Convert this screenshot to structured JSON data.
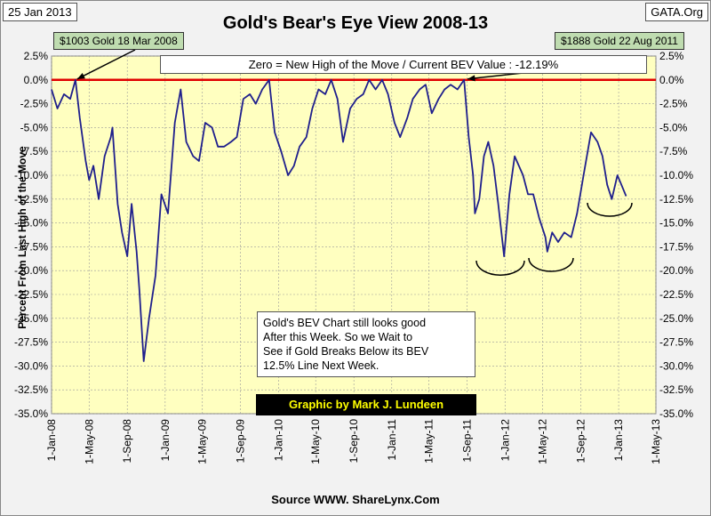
{
  "date_label": "25 Jan 2013",
  "site_label": "GATA.Org",
  "callout_left": "$1003  Gold 18 Mar 2008",
  "callout_right": "$1888  Gold 22 Aug 2011",
  "note_lines": [
    "Gold's BEV Chart still looks good",
    "After this Week.  So we Wait to",
    "See if Gold Breaks Below its BEV",
    "12.5% Line Next Week."
  ],
  "credit": "Graphic by Mark J. Lundeen",
  "source": "Source WWW. ShareLynx.Com",
  "colors": {
    "plot_bg": "#ffffc0",
    "series": "#1f1f8c",
    "zero_line": "#e00000",
    "callout_bg": "#bfdcb0",
    "credit_bg": "#000000",
    "credit_text": "#ffff00"
  },
  "chart_data": {
    "type": "line",
    "title": "Gold's Bear's Eye View 2008-13",
    "subtitle": "Zero = New High of the Move / Current  BEV Value : -12.19%",
    "xlabel": "",
    "ylabel": "Percent From Last High of the Move",
    "ylim": [
      -35,
      2.5
    ],
    "xlim": [
      "2008-01-01",
      "2013-05-01"
    ],
    "grid": true,
    "y_ticks": [
      "2.5%",
      "0.0%",
      "-2.5%",
      "-5.0%",
      "-7.5%",
      "-10.0%",
      "-12.5%",
      "-15.0%",
      "-17.5%",
      "-20.0%",
      "-22.5%",
      "-25.0%",
      "-27.5%",
      "-30.0%",
      "-32.5%",
      "-35.0%"
    ],
    "x_ticks": [
      "1-Jan-08",
      "1-May-08",
      "1-Sep-08",
      "1-Jan-09",
      "1-May-09",
      "1-Sep-09",
      "1-Jan-10",
      "1-May-10",
      "1-Sep-10",
      "1-Jan-11",
      "1-May-11",
      "1-Sep-11",
      "1-Jan-12",
      "1-May-12",
      "1-Sep-12",
      "1-Jan-13",
      "1-May-13"
    ],
    "series": [
      {
        "x": [
          "2008-01-01",
          "2008-01-20",
          "2008-02-10",
          "2008-03-01",
          "2008-03-18",
          "2008-04-01",
          "2008-04-20",
          "2008-05-01",
          "2008-05-15",
          "2008-06-01",
          "2008-06-20",
          "2008-07-10",
          "2008-07-15",
          "2008-08-01",
          "2008-08-15",
          "2008-09-01",
          "2008-09-15",
          "2008-10-01",
          "2008-10-10",
          "2008-10-24",
          "2008-11-10",
          "2008-12-01",
          "2008-12-20",
          "2009-01-10",
          "2009-02-01",
          "2009-02-20",
          "2009-03-10",
          "2009-04-01",
          "2009-04-20",
          "2009-05-10",
          "2009-06-01",
          "2009-06-20",
          "2009-07-10",
          "2009-08-01",
          "2009-08-20",
          "2009-09-10",
          "2009-10-01",
          "2009-10-20",
          "2009-11-10",
          "2009-12-02",
          "2009-12-20",
          "2010-01-10",
          "2010-02-01",
          "2010-02-20",
          "2010-03-10",
          "2010-04-01",
          "2010-04-20",
          "2010-05-10",
          "2010-06-01",
          "2010-06-20",
          "2010-07-10",
          "2010-07-28",
          "2010-08-20",
          "2010-09-10",
          "2010-10-01",
          "2010-10-20",
          "2010-11-10",
          "2010-12-01",
          "2010-12-20",
          "2011-01-10",
          "2011-01-28",
          "2011-02-20",
          "2011-03-10",
          "2011-04-01",
          "2011-04-20",
          "2011-05-10",
          "2011-06-01",
          "2011-06-20",
          "2011-07-10",
          "2011-08-01",
          "2011-08-22",
          "2011-09-06",
          "2011-09-20",
          "2011-09-26",
          "2011-10-10",
          "2011-10-25",
          "2011-11-08",
          "2011-11-25",
          "2011-12-10",
          "2011-12-29",
          "2012-01-15",
          "2012-02-01",
          "2012-02-28",
          "2012-03-15",
          "2012-04-01",
          "2012-04-20",
          "2012-05-10",
          "2012-05-16",
          "2012-06-01",
          "2012-06-20",
          "2012-07-10",
          "2012-08-01",
          "2012-08-20",
          "2012-09-10",
          "2012-10-04",
          "2012-10-25",
          "2012-11-10",
          "2012-11-25",
          "2012-12-10",
          "2012-12-28",
          "2013-01-10",
          "2013-01-25"
        ],
        "y": [
          -1.0,
          -3.0,
          -1.5,
          -2.0,
          0.0,
          -4.0,
          -8.5,
          -10.5,
          -9.0,
          -12.5,
          -8.0,
          -6.0,
          -5.0,
          -13.0,
          -16.0,
          -18.5,
          -13.0,
          -18.0,
          -22.0,
          -29.5,
          -25.0,
          -20.5,
          -12.0,
          -14.0,
          -4.5,
          -1.0,
          -6.5,
          -8.0,
          -8.5,
          -4.5,
          -5.0,
          -7.0,
          -7.0,
          -6.5,
          -6.0,
          -2.0,
          -1.5,
          -2.5,
          -1.0,
          0.0,
          -5.5,
          -7.5,
          -10.0,
          -9.0,
          -7.0,
          -6.0,
          -3.0,
          -1.0,
          -1.5,
          0.0,
          -2.0,
          -6.5,
          -3.0,
          -2.0,
          -1.5,
          0.0,
          -1.0,
          0.0,
          -1.5,
          -4.5,
          -6.0,
          -4.0,
          -2.0,
          -1.0,
          -0.5,
          -3.5,
          -2.0,
          -1.0,
          -0.5,
          -1.0,
          0.0,
          -6.0,
          -10.0,
          -14.0,
          -12.5,
          -8.0,
          -6.5,
          -9.0,
          -13.0,
          -18.5,
          -12.0,
          -8.0,
          -10.0,
          -12.0,
          -12.0,
          -14.5,
          -16.5,
          -18.0,
          -16.0,
          -17.0,
          -16.0,
          -16.5,
          -14.0,
          -10.0,
          -5.5,
          -6.5,
          -8.0,
          -11.0,
          -12.5,
          -10.0,
          -11.0,
          -12.19
        ]
      }
    ],
    "annotations": [
      "$1003  Gold 18 Mar 2008",
      "$1888  Gold 22 Aug 2011"
    ]
  }
}
